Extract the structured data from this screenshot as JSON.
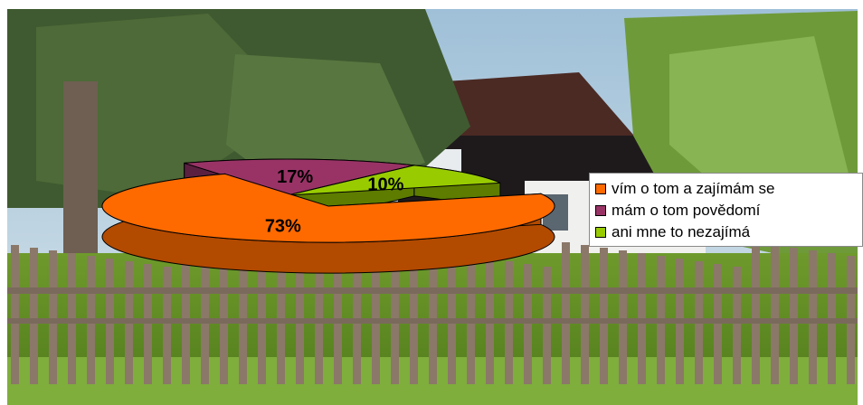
{
  "chart_data": {
    "type": "pie",
    "style": "3d-exploded",
    "categories": [
      "vím o tom a zajímám se",
      "mám o tom povědomí",
      "ani mne to nezajímá"
    ],
    "values": [
      73,
      17,
      10
    ],
    "data_labels": [
      "73%",
      "17%",
      "10%"
    ],
    "colors": [
      "#ff6a00",
      "#993366",
      "#99cc00"
    ],
    "side_colors": [
      "#b24a00",
      "#5b2040",
      "#5d7c00"
    ],
    "legend_position": "right"
  }
}
